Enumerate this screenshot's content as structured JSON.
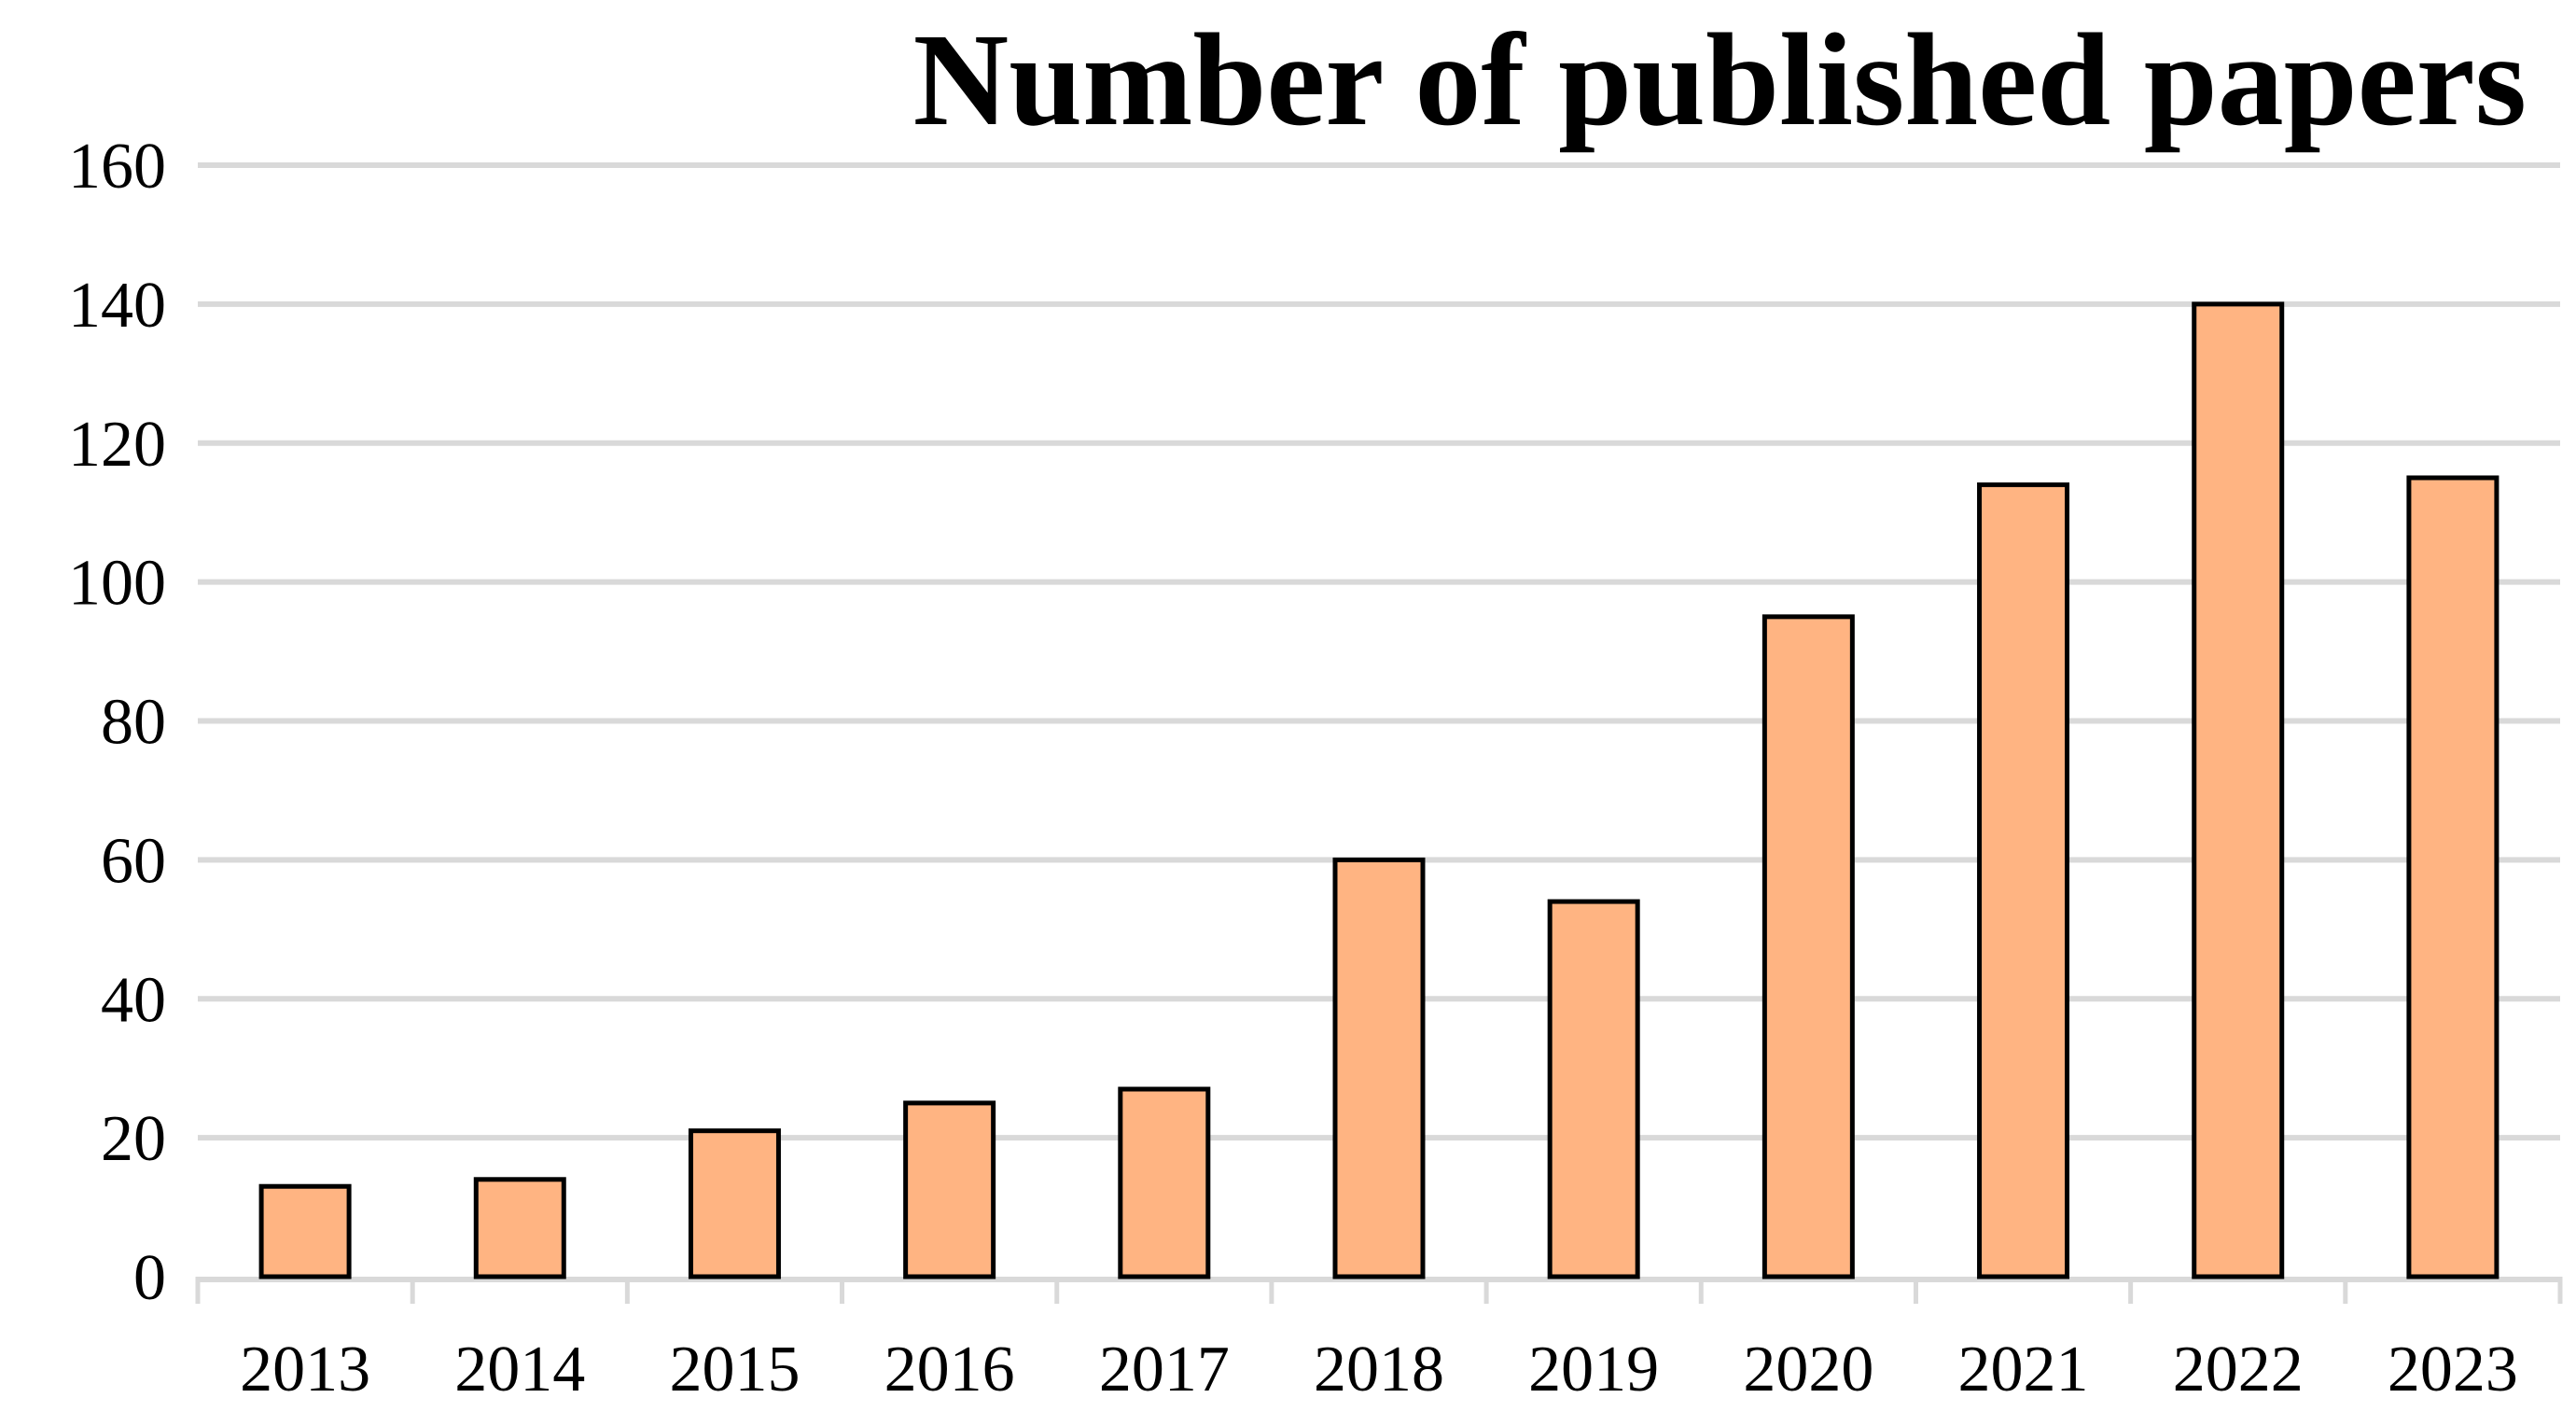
{
  "chart_data": {
    "type": "bar",
    "title": "Number of published papers",
    "xlabel": "",
    "ylabel": "",
    "categories": [
      "2013",
      "2014",
      "2015",
      "2016",
      "2017",
      "2018",
      "2019",
      "2020",
      "2021",
      "2022",
      "2023"
    ],
    "values": [
      13,
      14,
      21,
      25,
      27,
      60,
      54,
      95,
      114,
      140,
      115
    ],
    "ylim": [
      0,
      160
    ],
    "yticks": [
      0,
      20,
      40,
      60,
      80,
      100,
      120,
      140,
      160
    ],
    "grid": true,
    "legend": "none",
    "colors": {
      "bar_fill": "#FFB482",
      "bar_stroke": "#000000",
      "grid": "#D9D9D9"
    }
  }
}
